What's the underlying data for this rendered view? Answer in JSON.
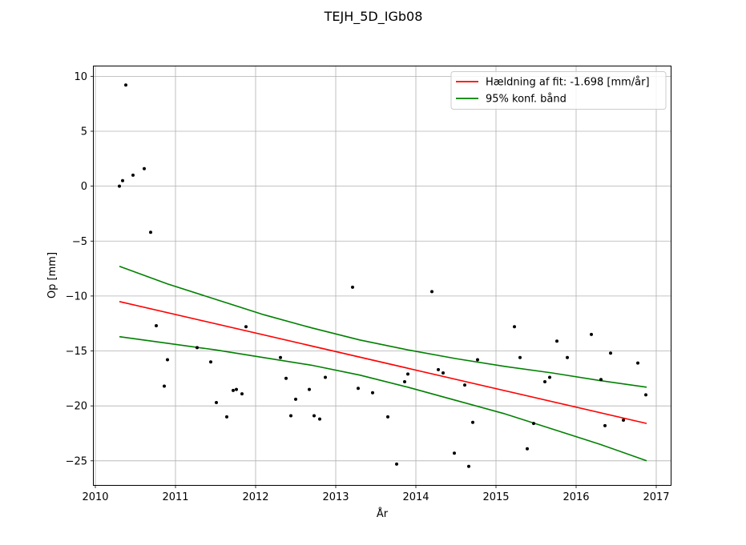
{
  "chart_data": {
    "type": "scatter",
    "title": "TEJH_5D_IGb08",
    "xlabel": "År",
    "ylabel": "Op [mm]",
    "xlim": [
      2009.98,
      2017.18
    ],
    "ylim": [
      -27.2,
      10.9
    ],
    "x_ticks": [
      2010,
      2011,
      2012,
      2013,
      2014,
      2015,
      2016,
      2017
    ],
    "y_ticks": [
      10,
      5,
      0,
      -5,
      -10,
      -15,
      -20,
      -25
    ],
    "grid": true,
    "legend_position": "top-right",
    "points": {
      "color": "#000000",
      "x": [
        2010.3,
        2010.34,
        2010.38,
        2010.47,
        2010.61,
        2010.69,
        2010.76,
        2010.86,
        2010.9,
        2011.27,
        2011.44,
        2011.51,
        2011.64,
        2011.72,
        2011.76,
        2011.83,
        2011.88,
        2012.31,
        2012.38,
        2012.44,
        2012.5,
        2012.67,
        2012.73,
        2012.8,
        2012.87,
        2013.21,
        2013.28,
        2013.46,
        2013.65,
        2013.76,
        2013.86,
        2013.9,
        2014.2,
        2014.28,
        2014.34,
        2014.48,
        2014.61,
        2014.66,
        2014.71,
        2014.77,
        2015.23,
        2015.3,
        2015.39,
        2015.47,
        2015.61,
        2015.67,
        2015.76,
        2015.89,
        2016.19,
        2016.31,
        2016.36,
        2016.43,
        2016.59,
        2016.77,
        2016.87
      ],
      "y": [
        0.0,
        0.5,
        9.2,
        1.0,
        1.6,
        -4.2,
        -12.7,
        -18.2,
        -15.8,
        -14.7,
        -16.0,
        -19.7,
        -21.0,
        -18.6,
        -18.5,
        -18.9,
        -12.8,
        -15.6,
        -17.5,
        -20.9,
        -19.4,
        -18.5,
        -20.9,
        -21.2,
        -17.4,
        -9.2,
        -18.4,
        -18.8,
        -21.0,
        -25.3,
        -17.8,
        -17.1,
        -9.6,
        -16.7,
        -17.0,
        -24.3,
        -18.1,
        -25.5,
        -21.5,
        -15.8,
        -12.8,
        -15.6,
        -23.9,
        -21.6,
        -17.8,
        -17.4,
        -14.1,
        -15.6,
        -13.5,
        -17.6,
        -21.8,
        -15.2,
        -21.3,
        -16.1,
        -19.0
      ]
    },
    "series": [
      {
        "name": "Hældning af fit: -1.698 [mm/år]",
        "color": "#ff0000",
        "x": [
          2010.3,
          2016.88
        ],
        "y": [
          -10.5,
          -21.6
        ]
      },
      {
        "name": "95% konf. bånd",
        "color": "#008000",
        "x": [
          2010.3,
          2010.9,
          2011.5,
          2012.1,
          2012.7,
          2013.3,
          2013.9,
          2014.5,
          2015.1,
          2015.7,
          2016.3,
          2016.88
        ],
        "y": [
          -7.3,
          -8.9,
          -10.3,
          -11.7,
          -12.9,
          -14.0,
          -14.9,
          -15.7,
          -16.4,
          -17.0,
          -17.7,
          -18.3
        ]
      },
      {
        "name": "",
        "color": "#008000",
        "x": [
          2010.3,
          2010.9,
          2011.5,
          2012.1,
          2012.7,
          2013.3,
          2013.9,
          2014.5,
          2015.1,
          2015.7,
          2016.3,
          2016.88
        ],
        "y": [
          -13.7,
          -14.3,
          -14.9,
          -15.6,
          -16.3,
          -17.2,
          -18.3,
          -19.5,
          -20.7,
          -22.1,
          -23.5,
          -25.0
        ]
      }
    ]
  }
}
